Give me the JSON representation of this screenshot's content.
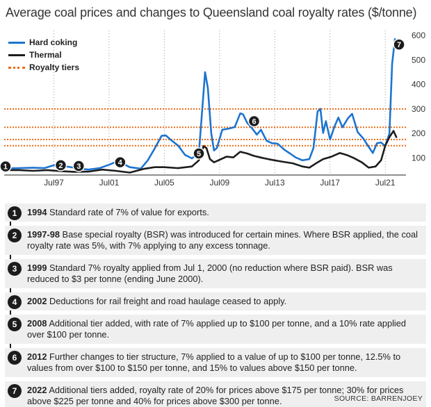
{
  "title": "Average coal prices and changes to Queensland coal royalty rates ($/tonne)",
  "legend": [
    {
      "label": "Hard coking",
      "color": "#1d74d0",
      "style": "solid"
    },
    {
      "label": "Thermal",
      "color": "#1c1c1c",
      "style": "solid"
    },
    {
      "label": "Royalty tiers",
      "color": "#ec6a14",
      "style": "dotted"
    }
  ],
  "chart_data": {
    "type": "line",
    "title": "Average coal prices and changes to Queensland coal royalty rates ($/tonne)",
    "xlabel": "",
    "ylabel": "",
    "x_range": [
      1993.9,
      2023.0
    ],
    "ylim": [
      30,
      620
    ],
    "y_ticks": [
      100,
      200,
      300,
      400,
      500,
      600
    ],
    "x_ticks": [
      {
        "label": "Jul97",
        "value": 1997.5
      },
      {
        "label": "Jul01",
        "value": 2001.5
      },
      {
        "label": "Jul05",
        "value": 2005.5
      },
      {
        "label": "Jul09",
        "value": 2009.5
      },
      {
        "label": "Jul13",
        "value": 2013.5
      },
      {
        "label": "Jul17",
        "value": 2017.5
      },
      {
        "label": "Jul21",
        "value": 2021.5
      }
    ],
    "grid": "vertical dotted at tick years",
    "axis_side": "right",
    "royalty_tiers": [
      150,
      175,
      225,
      300
    ],
    "series": [
      {
        "name": "Hard coking",
        "color": "#1d74d0",
        "x": [
          1993.9,
          1995.0,
          1996.0,
          1996.8,
          1997.5,
          1998.5,
          1999.3,
          2000.0,
          2000.8,
          2001.5,
          2002.0,
          2002.3,
          2003.0,
          2003.8,
          2004.3,
          2004.8,
          2005.3,
          2005.6,
          2006.0,
          2006.5,
          2007.0,
          2007.5,
          2008.0,
          2008.25,
          2008.45,
          2008.65,
          2008.9,
          2009.1,
          2009.3,
          2009.7,
          2010.2,
          2010.6,
          2011.0,
          2011.2,
          2011.5,
          2011.8,
          2012.2,
          2012.5,
          2012.9,
          2013.3,
          2013.7,
          2014.2,
          2014.6,
          2015.0,
          2015.5,
          2016.0,
          2016.3,
          2016.6,
          2016.8,
          2017.0,
          2017.2,
          2017.5,
          2017.8,
          2018.1,
          2018.4,
          2018.8,
          2019.1,
          2019.5,
          2019.9,
          2020.3,
          2020.6,
          2020.9,
          2021.2,
          2021.5,
          2021.8,
          2022.0,
          2022.2,
          2022.4
        ],
        "values": [
          57,
          58,
          60,
          58,
          70,
          64,
          57,
          52,
          58,
          72,
          84,
          82,
          62,
          56,
          90,
          138,
          190,
          192,
          172,
          150,
          112,
          98,
          120,
          300,
          450,
          385,
          200,
          130,
          140,
          215,
          220,
          226,
          282,
          278,
          243,
          225,
          195,
          215,
          170,
          160,
          158,
          133,
          118,
          102,
          90,
          95,
          140,
          290,
          300,
          202,
          250,
          175,
          225,
          265,
          225,
          262,
          280,
          205,
          180,
          145,
          120,
          160,
          163,
          148,
          200,
          485,
          585,
          550
        ]
      },
      {
        "name": "Thermal",
        "color": "#1c1c1c",
        "x": [
          1993.9,
          1995.0,
          1996.0,
          1997.0,
          1998.0,
          1999.0,
          2000.0,
          2001.0,
          2002.0,
          2003.0,
          2004.0,
          2004.8,
          2005.5,
          2006.5,
          2007.5,
          2008.0,
          2008.35,
          2008.55,
          2008.8,
          2009.1,
          2009.5,
          2010.0,
          2010.5,
          2011.0,
          2011.5,
          2012.0,
          2012.6,
          2013.2,
          2014.0,
          2014.8,
          2015.5,
          2016.0,
          2016.6,
          2017.0,
          2017.6,
          2018.2,
          2018.7,
          2019.2,
          2019.8,
          2020.3,
          2020.8,
          2021.2,
          2021.5,
          2021.8,
          2022.1,
          2022.3
        ],
        "values": [
          50,
          50,
          47,
          50,
          46,
          43,
          44,
          52,
          47,
          40,
          55,
          62,
          62,
          58,
          65,
          90,
          148,
          140,
          95,
          82,
          92,
          105,
          102,
          125,
          118,
          108,
          100,
          93,
          85,
          78,
          65,
          60,
          82,
          95,
          105,
          120,
          112,
          100,
          82,
          60,
          65,
          90,
          150,
          185,
          210,
          185
        ]
      }
    ],
    "markers": [
      {
        "label": "1",
        "x": 1994.0,
        "y": 65
      },
      {
        "label": "2",
        "x": 1998.0,
        "y": 70
      },
      {
        "label": "3",
        "x": 1999.3,
        "y": 67
      },
      {
        "label": "4",
        "x": 2002.3,
        "y": 82
      },
      {
        "label": "5",
        "x": 2008.0,
        "y": 118
      },
      {
        "label": "6",
        "x": 2012.0,
        "y": 250
      },
      {
        "label": "7",
        "x": 2022.5,
        "y": 563
      }
    ]
  },
  "events": [
    {
      "num": "1",
      "year": "1994",
      "text": "Standard rate of 7% of value for exports."
    },
    {
      "num": "2",
      "year": "1997-98",
      "text": "Base special royalty (BSR) was introduced for certain mines. Where BSR applied, the coal royalty rate was 5%, with 7% applying to any excess tonnage."
    },
    {
      "num": "3",
      "year": "1999",
      "text": "Standard 7% royalty applied from Jul 1, 2000 (no reduction where BSR paid). BSR was reduced to $3 per tonne (ending June 2000)."
    },
    {
      "num": "4",
      "year": "2002",
      "text": "Deductions for rail freight and road haulage ceased to apply."
    },
    {
      "num": "5",
      "year": "2008",
      "text": "Additional tier added, with rate of 7% applied up to $100 per tonne, and a 10% rate applied over $100 per tonne."
    },
    {
      "num": "6",
      "year": "2012",
      "text": "Further changes to tier structure, 7% applied to a value of up to $100 per tonne, 12.5% to values from over $100 to $150 per tonne, and 15% to values above $150 per tonne."
    },
    {
      "num": "7",
      "year": "2022",
      "text": "Additional tiers added, royalty rate of 20% for prices above $175 per tonne; 30% for prices above $225 per tonne and 40% for prices above $300 per tonne."
    }
  ],
  "source": "SOURCE: BARRENJOEY"
}
